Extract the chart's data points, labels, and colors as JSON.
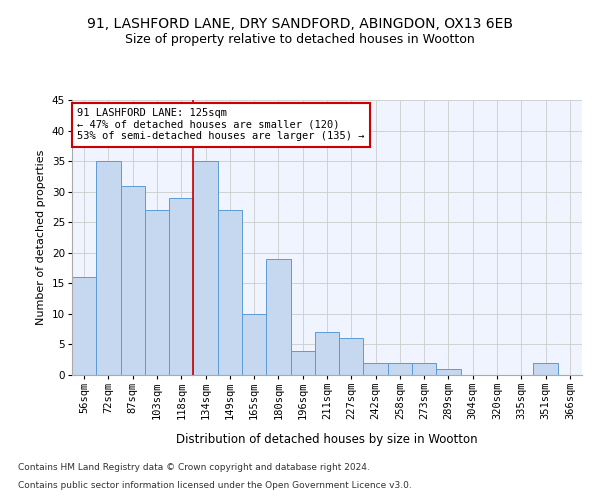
{
  "title1": "91, LASHFORD LANE, DRY SANDFORD, ABINGDON, OX13 6EB",
  "title2": "Size of property relative to detached houses in Wootton",
  "xlabel": "Distribution of detached houses by size in Wootton",
  "ylabel": "Number of detached properties",
  "categories": [
    "56sqm",
    "72sqm",
    "87sqm",
    "103sqm",
    "118sqm",
    "134sqm",
    "149sqm",
    "165sqm",
    "180sqm",
    "196sqm",
    "211sqm",
    "227sqm",
    "242sqm",
    "258sqm",
    "273sqm",
    "289sqm",
    "304sqm",
    "320sqm",
    "335sqm",
    "351sqm",
    "366sqm"
  ],
  "values": [
    16,
    35,
    31,
    27,
    29,
    35,
    27,
    10,
    19,
    4,
    7,
    6,
    2,
    2,
    2,
    1,
    0,
    0,
    0,
    2,
    0
  ],
  "bar_color": "#c5d8f0",
  "bar_edge_color": "#5b9bd5",
  "vline_x": 4.5,
  "vline_color": "#cc0000",
  "annotation_line1": "91 LASHFORD LANE: 125sqm",
  "annotation_line2": "← 47% of detached houses are smaller (120)",
  "annotation_line3": "53% of semi-detached houses are larger (135) →",
  "annotation_box_color": "#ffffff",
  "annotation_box_edge_color": "#cc0000",
  "ylim": [
    0,
    45
  ],
  "yticks": [
    0,
    5,
    10,
    15,
    20,
    25,
    30,
    35,
    40,
    45
  ],
  "footer1": "Contains HM Land Registry data © Crown copyright and database right 2024.",
  "footer2": "Contains public sector information licensed under the Open Government Licence v3.0.",
  "background_color": "#f0f4ff",
  "grid_color": "#cccccc",
  "title1_fontsize": 10,
  "title2_fontsize": 9,
  "xlabel_fontsize": 8.5,
  "ylabel_fontsize": 8,
  "tick_fontsize": 7.5,
  "annotation_fontsize": 7.5,
  "footer_fontsize": 6.5
}
